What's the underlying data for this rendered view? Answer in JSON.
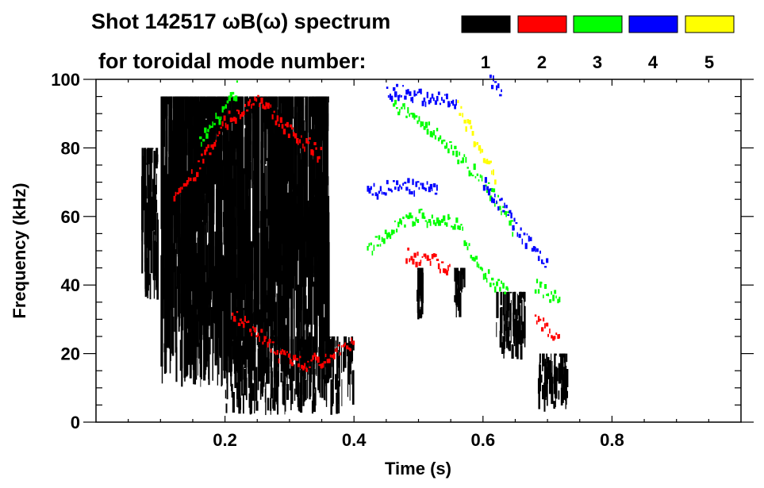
{
  "chart_data": {
    "type": "heatmap",
    "title_line1": "Shot 142517 ωB(ω) spectrum",
    "title_line2": "for toroidal mode number:",
    "xlabel": "Time (s)",
    "ylabel": "Frequency (kHz)",
    "xlim": [
      0,
      1.0
    ],
    "ylim": [
      0,
      100
    ],
    "xticks": [
      0.2,
      0.4,
      0.6,
      0.8
    ],
    "xtick_labels": [
      "0.2",
      "0.4",
      "0.6",
      "0.8"
    ],
    "yticks": [
      0,
      20,
      40,
      60,
      80,
      100
    ],
    "ytick_labels": [
      "0",
      "20",
      "40",
      "60",
      "80",
      "100"
    ],
    "x_minor_step": 0.05,
    "y_minor_step": 5,
    "legend_position": "top-right",
    "legend": [
      {
        "mode": "1",
        "color": "#000000"
      },
      {
        "mode": "2",
        "color": "#ff0000"
      },
      {
        "mode": "3",
        "color": "#00ff00"
      },
      {
        "mode": "4",
        "color": "#0000ff"
      },
      {
        "mode": "5",
        "color": "#ffff00"
      }
    ],
    "series": [
      {
        "name": "1",
        "color": "#000000",
        "regions": [
          [
            0.07,
            0.095,
            35,
            80
          ],
          [
            0.1,
            0.36,
            10,
            95
          ],
          [
            0.2,
            0.4,
            2,
            25
          ],
          [
            0.495,
            0.505,
            30,
            45
          ],
          [
            0.555,
            0.57,
            30,
            45
          ],
          [
            0.62,
            0.665,
            18,
            38
          ],
          [
            0.685,
            0.73,
            3,
            20
          ]
        ],
        "tracks": []
      },
      {
        "name": "2",
        "color": "#ff0000",
        "regions": [],
        "tracks": [
          [
            [
              0.12,
              67
            ],
            [
              0.15,
              72
            ],
            [
              0.2,
              88
            ],
            [
              0.25,
              95
            ],
            [
              0.3,
              85
            ],
            [
              0.35,
              78
            ]
          ],
          [
            [
              0.21,
              32
            ],
            [
              0.25,
              26
            ],
            [
              0.28,
              20
            ],
            [
              0.32,
              17
            ],
            [
              0.36,
              19
            ],
            [
              0.4,
              24
            ]
          ],
          [
            [
              0.48,
              49
            ],
            [
              0.52,
              47
            ],
            [
              0.55,
              45
            ]
          ],
          [
            [
              0.68,
              30
            ],
            [
              0.72,
              24
            ]
          ]
        ]
      },
      {
        "name": "3",
        "color": "#00ff00",
        "regions": [],
        "tracks": [
          [
            [
              0.42,
              50
            ],
            [
              0.46,
              57
            ],
            [
              0.5,
              60
            ],
            [
              0.56,
              58
            ],
            [
              0.58,
              50
            ],
            [
              0.61,
              42
            ],
            [
              0.64,
              38
            ]
          ],
          [
            [
              0.46,
              93
            ],
            [
              0.5,
              88
            ],
            [
              0.55,
              80
            ],
            [
              0.6,
              70
            ],
            [
              0.63,
              62
            ],
            [
              0.65,
              55
            ]
          ],
          [
            [
              0.16,
              82
            ],
            [
              0.19,
              90
            ],
            [
              0.22,
              98
            ]
          ],
          [
            [
              0.68,
              40
            ],
            [
              0.72,
              35
            ]
          ]
        ]
      },
      {
        "name": "4",
        "color": "#0000ff",
        "regions": [],
        "tracks": [
          [
            [
              0.45,
              97
            ],
            [
              0.5,
              95
            ],
            [
              0.56,
              94
            ]
          ],
          [
            [
              0.42,
              67
            ],
            [
              0.47,
              69
            ],
            [
              0.53,
              68
            ]
          ],
          [
            [
              0.61,
              100
            ],
            [
              0.63,
              96
            ]
          ],
          [
            [
              0.6,
              70
            ],
            [
              0.7,
              45
            ]
          ]
        ]
      },
      {
        "name": "5",
        "color": "#ffff00",
        "regions": [],
        "tracks": [
          [
            [
              0.56,
              92
            ],
            [
              0.6,
              78
            ],
            [
              0.62,
              70
            ]
          ]
        ]
      }
    ]
  }
}
